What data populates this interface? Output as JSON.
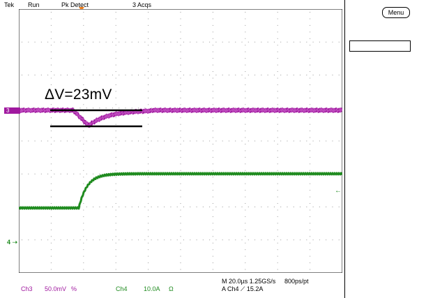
{
  "status_bar": {
    "brand": "Tek",
    "run_state": "Run",
    "acq_mode": "Pk Detect",
    "acq_count": "3 Acqs"
  },
  "menu_button": {
    "label": "Menu"
  },
  "annotation": {
    "text": "ΔV=23mV"
  },
  "channel_markers": {
    "ch3": "3",
    "ch4": "4"
  },
  "readout": {
    "ch3_label": "Ch3",
    "ch3_scale": "50.0mV",
    "ch3_coupling": "%",
    "ch4_label": "Ch4",
    "ch4_scale": "10.0A",
    "ch4_impedance": "Ω",
    "timebase": "M 20.0µs 1.25GS/s",
    "record": "800ps/pt",
    "trigger": "A  Ch4  ⟋  15.2A"
  },
  "colors": {
    "ch3": "#a0199f",
    "ch4": "#1f8b1f",
    "grid": "#9a9a9a",
    "trigger_marker": "#f08020"
  }
}
